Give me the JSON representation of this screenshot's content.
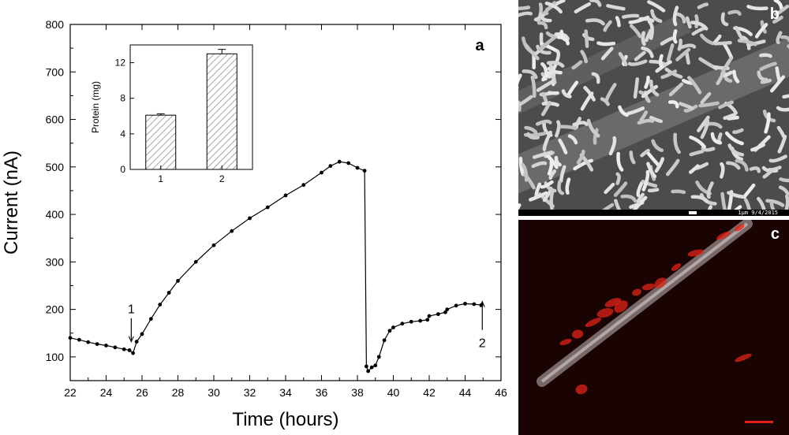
{
  "figure": {
    "panel_labels": [
      "a",
      "b",
      "c"
    ]
  },
  "chart_data": [
    {
      "type": "line",
      "panel": "a",
      "xlabel": "Time (hours)",
      "ylabel": "Current (nA)",
      "xlim": [
        22,
        46
      ],
      "ylim": [
        50,
        800
      ],
      "xticks": [
        22,
        24,
        26,
        28,
        30,
        32,
        34,
        36,
        38,
        40,
        42,
        44,
        46
      ],
      "yticks": [
        100,
        200,
        300,
        400,
        500,
        600,
        700,
        800
      ],
      "grid": false,
      "series": [
        {
          "color": "#000000",
          "x": [
            22.0,
            22.5,
            23.0,
            23.5,
            24.0,
            24.5,
            25.0,
            25.3,
            25.5,
            25.7,
            26.0,
            26.5,
            27.0,
            27.5,
            28.0,
            29.0,
            30.0,
            31.0,
            32.0,
            33.0,
            34.0,
            35.0,
            36.0,
            36.5,
            37.0,
            37.5,
            38.0,
            38.4,
            38.5,
            38.6,
            38.8,
            39.0,
            39.2,
            39.5,
            39.8,
            40.0,
            40.5,
            41.0,
            41.5,
            41.9,
            42.0,
            42.5,
            42.9,
            43.0,
            43.5,
            44.0,
            44.5,
            44.9
          ],
          "y": [
            140,
            136,
            131,
            127,
            124,
            120,
            116,
            114,
            108,
            132,
            148,
            180,
            210,
            235,
            260,
            300,
            335,
            365,
            392,
            415,
            440,
            462,
            488,
            502,
            511,
            508,
            498,
            492,
            80,
            70,
            78,
            82,
            100,
            135,
            155,
            162,
            170,
            174,
            176,
            178,
            186,
            190,
            194,
            200,
            208,
            212,
            211,
            209
          ]
        }
      ],
      "annotations": [
        {
          "text": "1",
          "x": 25.4,
          "y": 145
        },
        {
          "text": "2",
          "x": 45.0,
          "y": 150
        }
      ]
    },
    {
      "type": "bar",
      "panel": "a-inset",
      "categories": [
        "1",
        "2"
      ],
      "values": [
        6.1,
        13.0
      ],
      "errors": [
        0.15,
        0.5
      ],
      "ylabel": "Protein (mg)",
      "ylim": [
        0,
        14
      ],
      "yticks": [
        0,
        4,
        8,
        12
      ]
    }
  ],
  "images": {
    "b": {
      "caption": "1μm   9/4/2015"
    },
    "c": {
      "scale_bar_color": "#e0201a"
    }
  }
}
